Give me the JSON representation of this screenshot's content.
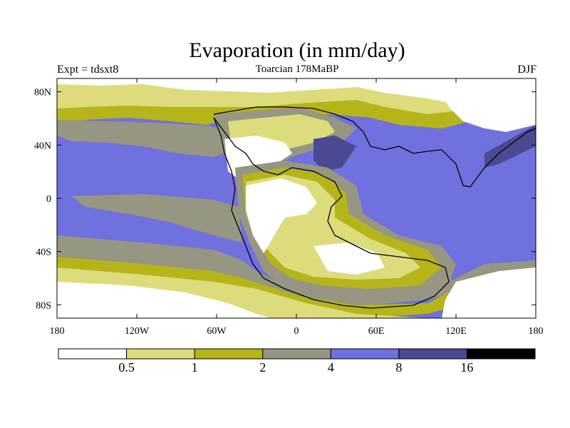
{
  "header": {
    "title": "Evaporation (in mm/day)",
    "left": "Expt = tdsxt8",
    "center": "Toarcian 178MaBP",
    "right": "DJF"
  },
  "axes": {
    "lat_labels": [
      "80N",
      "40N",
      "0",
      "40S",
      "80S"
    ],
    "lat_values": [
      80,
      40,
      0,
      -40,
      -80
    ],
    "lon_labels": [
      "180",
      "120W",
      "60W",
      "0",
      "60E",
      "120E",
      "180"
    ],
    "lon_values": [
      -180,
      -120,
      -60,
      0,
      60,
      120,
      180
    ]
  },
  "colorbar": {
    "labels": [
      "0.5",
      "1",
      "2",
      "4",
      "8",
      "16"
    ],
    "colors": [
      "#ffffff",
      "#dcdc7c",
      "#b5b51a",
      "#969682",
      "#7070de",
      "#4a4a92",
      "#000000"
    ]
  }
}
